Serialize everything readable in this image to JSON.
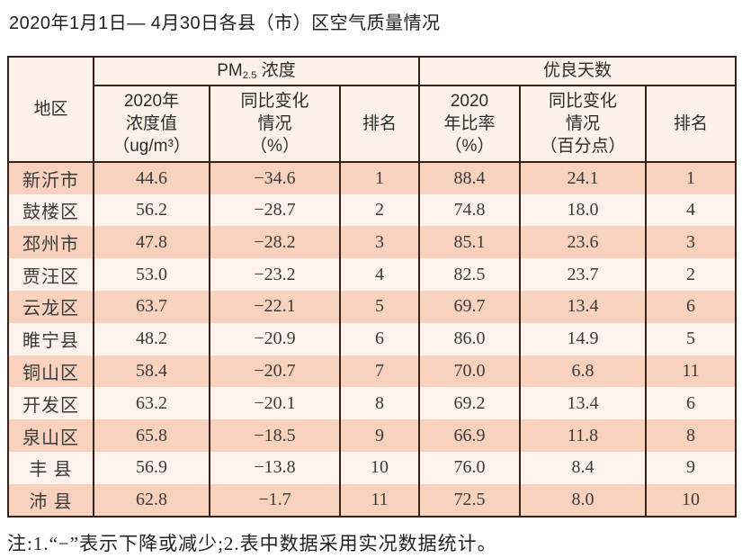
{
  "title": "2020年1月1日— 4月30日各县（市）区空气质量情况",
  "note": "注:1.“−”表示下降或减少;2.表中数据采用实况数据统计。",
  "colors": {
    "border": "#38211a",
    "row_peach": "#f9d2bd",
    "row_cream": "#fdf3ec",
    "header_bg": "#fdf2ea",
    "background": "#ffffff"
  },
  "table": {
    "headers": {
      "region": "地区",
      "pm25_prefix": "PM",
      "pm25_sub": "2.5",
      "pm25_suffix": " 浓度",
      "good_days": "优良天数",
      "pm_value": "2020年\n浓度值\n（ug/m³）",
      "pm_change": "同比变化\n情况\n（%）",
      "pm_rank": "排名",
      "good_rate": "2020\n年比率\n（%）",
      "good_change": "同比变化\n情况\n（百分点）",
      "good_rank": "排名"
    }
  },
  "chart_data": {
    "type": "table",
    "title": "2020年1月1日— 4月30日各县（市）区空气质量情况",
    "columns": [
      "地区",
      "PM2.5浓度 2020年浓度值（ug/m³）",
      "PM2.5浓度 同比变化情况（%）",
      "PM2.5浓度 排名",
      "优良天数 2020年比率（%）",
      "优良天数 同比变化情况（百分点）",
      "优良天数 排名"
    ],
    "rows": [
      [
        "新沂市",
        "44.6",
        "−34.6",
        "1",
        "88.4",
        "24.1",
        "1"
      ],
      [
        "鼓楼区",
        "56.2",
        "−28.7",
        "2",
        "74.8",
        "18.0",
        "4"
      ],
      [
        "邳州市",
        "47.8",
        "−28.2",
        "3",
        "85.1",
        "23.6",
        "3"
      ],
      [
        "贾汪区",
        "53.0",
        "−23.2",
        "4",
        "82.5",
        "23.7",
        "2"
      ],
      [
        "云龙区",
        "63.7",
        "−22.1",
        "5",
        "69.7",
        "13.4",
        "6"
      ],
      [
        "睢宁县",
        "48.2",
        "−20.9",
        "6",
        "86.0",
        "14.9",
        "5"
      ],
      [
        "铜山区",
        "58.4",
        "−20.7",
        "7",
        "70.0",
        "6.8",
        "11"
      ],
      [
        "开发区",
        "63.2",
        "−20.1",
        "8",
        "69.2",
        "13.4",
        "6"
      ],
      [
        "泉山区",
        "65.8",
        "−18.5",
        "9",
        "66.9",
        "11.8",
        "8"
      ],
      [
        "丰 县",
        "56.9",
        "−13.8",
        "10",
        "76.0",
        "8.4",
        "9"
      ],
      [
        "沛 县",
        "62.8",
        "−1.7",
        "11",
        "72.5",
        "8.0",
        "10"
      ]
    ]
  }
}
